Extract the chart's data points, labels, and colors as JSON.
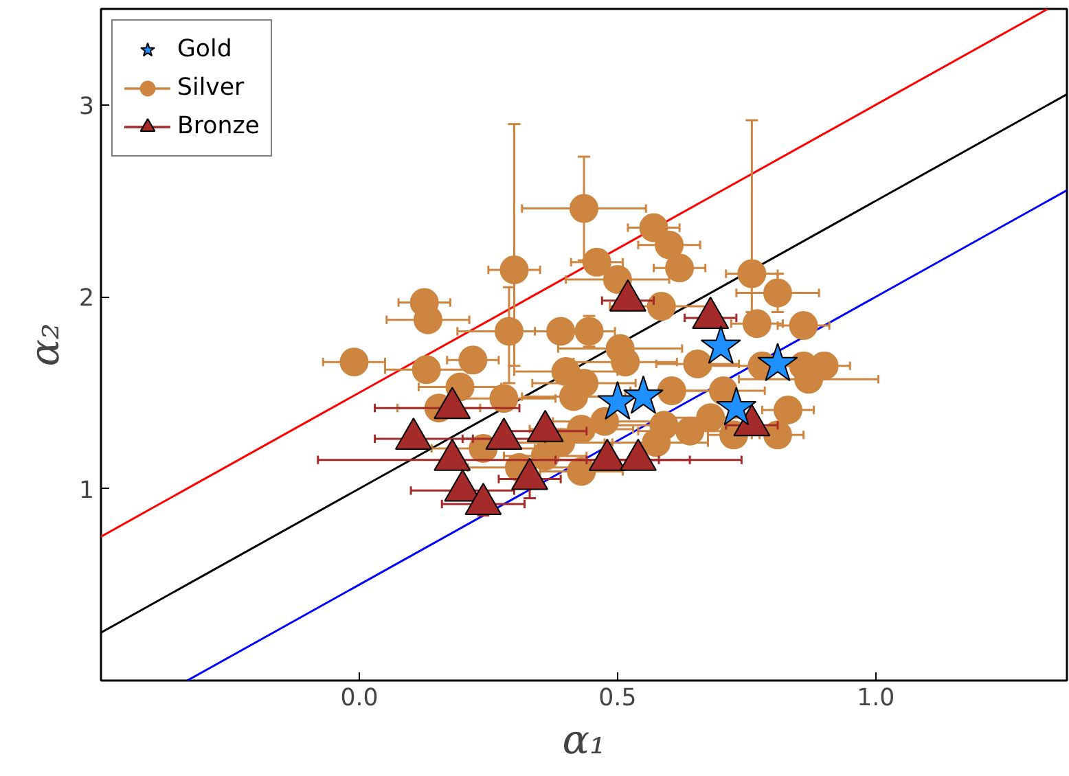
{
  "chart_data": {
    "type": "scatter",
    "xlabel": "α₁",
    "ylabel": "α₂",
    "xlim": [
      -0.5,
      1.37
    ],
    "ylim": [
      0,
      3.5
    ],
    "xticks": [
      {
        "value": 0,
        "label": "0.0"
      },
      {
        "value": 0.5,
        "label": "0.5"
      },
      {
        "value": 1,
        "label": "1.0"
      }
    ],
    "yticks": [
      1,
      2,
      3
    ],
    "grid": false,
    "legend": "top left",
    "series": [
      {
        "type": "line",
        "color": "#ff0000",
        "x": [
          -0.5,
          1.333
        ],
        "values": [
          0.75,
          3.5
        ]
      },
      {
        "type": "line",
        "color": "#000000",
        "x": [
          -0.5,
          1.37
        ],
        "values": [
          0.25,
          3.055
        ]
      },
      {
        "type": "line",
        "color": "#0000ff",
        "x": [
          -0.333,
          1.37
        ],
        "values": [
          0,
          2.555
        ]
      },
      {
        "name": "Gold",
        "color": "#1e90ff",
        "marker": "star",
        "x": [
          0.7,
          0.5,
          0.55,
          0.73,
          0.81
        ],
        "values": [
          1.74,
          1.45,
          1.48,
          1.42,
          1.65
        ]
      },
      {
        "name": "Silver",
        "color": "#cd853f",
        "marker": "circle",
        "x": [
          0.435,
          0.3,
          0.57,
          0.6,
          0.62,
          0.46,
          0.5,
          0.76,
          0.81,
          0.126,
          0.133,
          0.585,
          0.29,
          0.39,
          0.445,
          0.77,
          0.86,
          -0.01,
          0.13,
          0.22,
          0.195,
          0.154,
          0.28,
          0.4,
          0.435,
          0.505,
          0.515,
          0.605,
          0.655,
          0.78,
          0.86,
          0.9,
          0.87,
          0.83,
          0.81,
          0.725,
          0.68,
          0.64,
          0.575,
          0.43,
          0.43,
          0.415,
          0.24,
          0.31,
          0.36,
          0.39,
          0.475,
          0.59,
          0.705
        ],
        "values": [
          2.46,
          2.14,
          2.36,
          2.27,
          2.15,
          2.18,
          2.09,
          2.12,
          2.02,
          1.97,
          1.88,
          1.95,
          1.82,
          1.82,
          1.82,
          1.86,
          1.85,
          1.66,
          1.62,
          1.67,
          1.53,
          1.42,
          1.47,
          1.61,
          1.55,
          1.73,
          1.66,
          1.51,
          1.65,
          1.64,
          1.64,
          1.64,
          1.57,
          1.41,
          1.28,
          1.28,
          1.37,
          1.3,
          1.24,
          1.31,
          1.09,
          1.48,
          1.21,
          1.11,
          1.17,
          1.24,
          1.35,
          1.33,
          1.51
        ],
        "xerrors": [
          0.12,
          0.05,
          0.05,
          0.06,
          0.05,
          0.05,
          0.1,
          0.05,
          0.08,
          0.05,
          0.08,
          0.1,
          0.1,
          0.05,
          0.05,
          0.05,
          0.05,
          0.06,
          0.08,
          0.05,
          0.08,
          0.08,
          0.1,
          0.1,
          0.1,
          0.12,
          0.1,
          0.08,
          0.08,
          0.1,
          0.05,
          0.05,
          0.135,
          0.05,
          0.05,
          0.05,
          0.08,
          0.1,
          0.1,
          0.1,
          0.08,
          0.1,
          0.1,
          0.1,
          0.08,
          0.1,
          0.1,
          0.1,
          0.08
        ],
        "errors": [
          0.27,
          [
            1.64,
            2.9
          ],
          0.05,
          0.05,
          0.05,
          0.05,
          0.05,
          [
            1.92,
            2.92
          ],
          0.1,
          0.05,
          0.05,
          0.05,
          [
            1.55,
            2.05
          ],
          0.05,
          0.08,
          0.05,
          0.05,
          0.05,
          0.05,
          0.05,
          0.05,
          0.05,
          0.05,
          0.05,
          0.05,
          0.05,
          0.05,
          0.05,
          0.05,
          0.05,
          0.05,
          0.05,
          0.05,
          0.05,
          0.05,
          0.05,
          0.05,
          0.05,
          0.05,
          0.05,
          0.05,
          0.05,
          0.05,
          0.05,
          0.05,
          0.05,
          0.05,
          0.05,
          0.05
        ]
      },
      {
        "name": "Bronze",
        "color": "#a52a2a",
        "marker": "triangle",
        "x": [
          0.52,
          0.68,
          0.105,
          0.18,
          0.28,
          0.36,
          0.18,
          0.2,
          0.24,
          0.33,
          0.48,
          0.54,
          0.76
        ],
        "values": [
          1.98,
          1.89,
          1.26,
          1.42,
          1.26,
          1.3,
          1.15,
          0.99,
          0.92,
          1.05,
          1.15,
          1.15,
          1.33
        ],
        "xerrors": [
          0.05,
          0.05,
          [
            0.03,
            0.22
          ],
          [
            0.03,
            0.31
          ],
          0.08,
          0.08,
          [
            -0.08,
            0.74
          ],
          0.1,
          0.08,
          0.06,
          0.1,
          0.1,
          0.05
        ],
        "errors": [
          0.05,
          0.05,
          0.05,
          0.05,
          0.05,
          0.05,
          0.05,
          0.05,
          0.06,
          0.1,
          0.05,
          0.05,
          0.05
        ]
      }
    ]
  }
}
